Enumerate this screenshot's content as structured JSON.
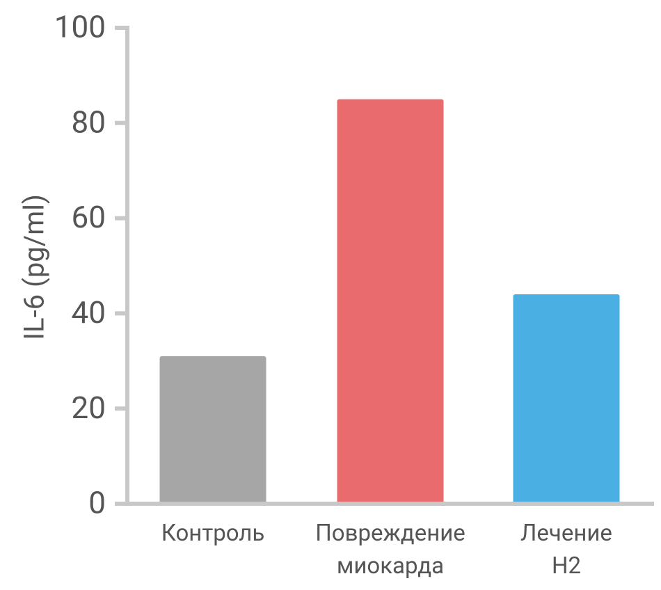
{
  "chart_data": {
    "type": "bar",
    "ylabel": "IL-6 (pg/ml)",
    "categories": [
      "Контроль",
      "Повреждение миокарда",
      "Лечение H2"
    ],
    "values": [
      31,
      85,
      44
    ],
    "colors": [
      "#a6a6a6",
      "#e96b6d",
      "#4ab0e4"
    ],
    "ylim": [
      0,
      100
    ],
    "yticks": [
      0,
      20,
      40,
      60,
      80,
      100
    ],
    "grid": false
  }
}
